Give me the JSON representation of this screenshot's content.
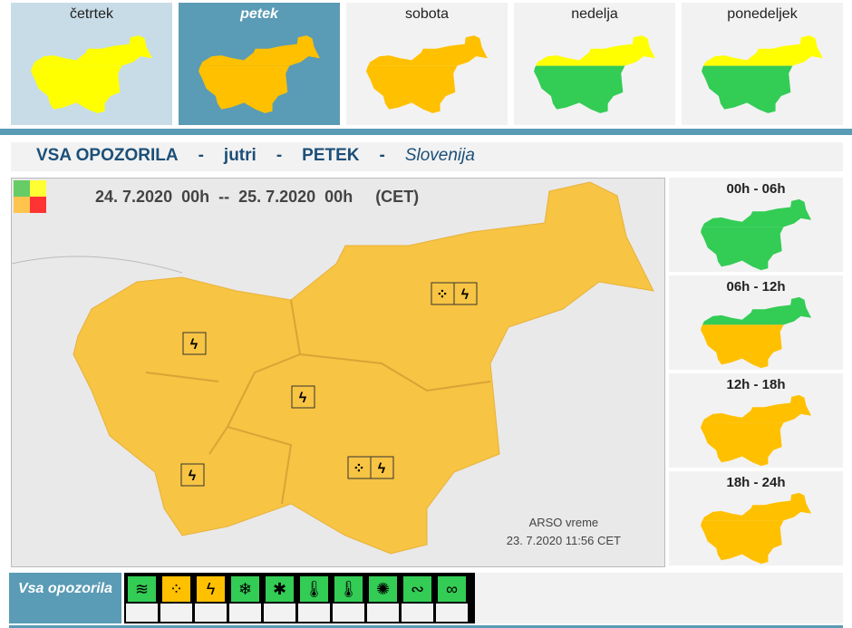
{
  "days": [
    {
      "label": "četrtek",
      "fills": [
        "#ffff00",
        "#ffff00"
      ]
    },
    {
      "label": "petek",
      "fills": [
        "#ffc000",
        "#ffc000"
      ],
      "selected": true
    },
    {
      "label": "sobota",
      "fills": [
        "#ffc000",
        "#ffc000"
      ]
    },
    {
      "label": "nedelja",
      "fills": [
        "#ffff00",
        "#33cc55"
      ]
    },
    {
      "label": "ponedeljek",
      "fills": [
        "#ffff00",
        "#33cc55"
      ]
    }
  ],
  "title": {
    "main": "VSA OPOZORILA",
    "sep": "-",
    "when": "jutri",
    "day": "PETEK",
    "region": "Slovenija"
  },
  "map": {
    "period": "24. 7.2020  00h  --  25. 7.2020  00h     (CET)",
    "credit_line1": "ARSO vreme",
    "credit_line2": "23. 7.2020   11:56 CET",
    "fill": "#f7c443",
    "legend_colors": [
      "#66cc66",
      "#ffff33",
      "#ffc44d",
      "#ff3333"
    ]
  },
  "periods": [
    {
      "label": "00h - 06h",
      "fills": [
        "#33cc55",
        "#33cc55"
      ]
    },
    {
      "label": "06h - 12h",
      "fills": [
        "#33cc55",
        "#ffc000"
      ]
    },
    {
      "label": "12h - 18h",
      "fills": [
        "#ffc000",
        "#ffc000"
      ]
    },
    {
      "label": "18h - 24h",
      "fills": [
        "#ffc000",
        "#ffc000"
      ]
    }
  ],
  "all_warnings_label": "Vsa opozorila",
  "warning_types": [
    {
      "name": "wind",
      "glyph": "≋",
      "color": "#33cc55"
    },
    {
      "name": "rain",
      "glyph": "⁘",
      "color": "#ffc000"
    },
    {
      "name": "thunderstorm",
      "glyph": "ϟ",
      "color": "#ffc000"
    },
    {
      "name": "snow",
      "glyph": "❄",
      "color": "#33cc55"
    },
    {
      "name": "snow-ice",
      "glyph": "✱",
      "color": "#33cc55"
    },
    {
      "name": "low-temperature",
      "glyph": "🌡",
      "color": "#33cc55"
    },
    {
      "name": "high-temperature",
      "glyph": "🌡",
      "color": "#33cc55"
    },
    {
      "name": "fire",
      "glyph": "✺",
      "color": "#33cc55"
    },
    {
      "name": "coastal",
      "glyph": "∾",
      "color": "#33cc55"
    },
    {
      "name": "fog",
      "glyph": "∞",
      "color": "#33cc55"
    }
  ]
}
